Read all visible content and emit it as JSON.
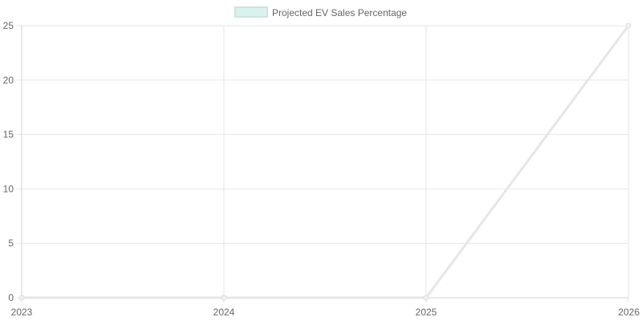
{
  "chart_data": {
    "type": "line",
    "x": [
      "2023",
      "2024",
      "2025",
      "2026"
    ],
    "series": [
      {
        "name": "Projected EV Sales Percentage",
        "values": [
          0,
          0,
          0,
          25
        ],
        "stroke_color": "#e6e6e6",
        "legend_fill_color": "#d9f2ee",
        "legend_border_color": "#cfe3df"
      }
    ],
    "ylim": [
      0,
      25
    ],
    "y_ticks": [
      0,
      5,
      10,
      15,
      20,
      25
    ],
    "grid": true,
    "legend_position": "top-center",
    "grid_color": "#e6e6e6",
    "axis_color": "#d0d0d0",
    "tick_label_color": "#666666"
  }
}
